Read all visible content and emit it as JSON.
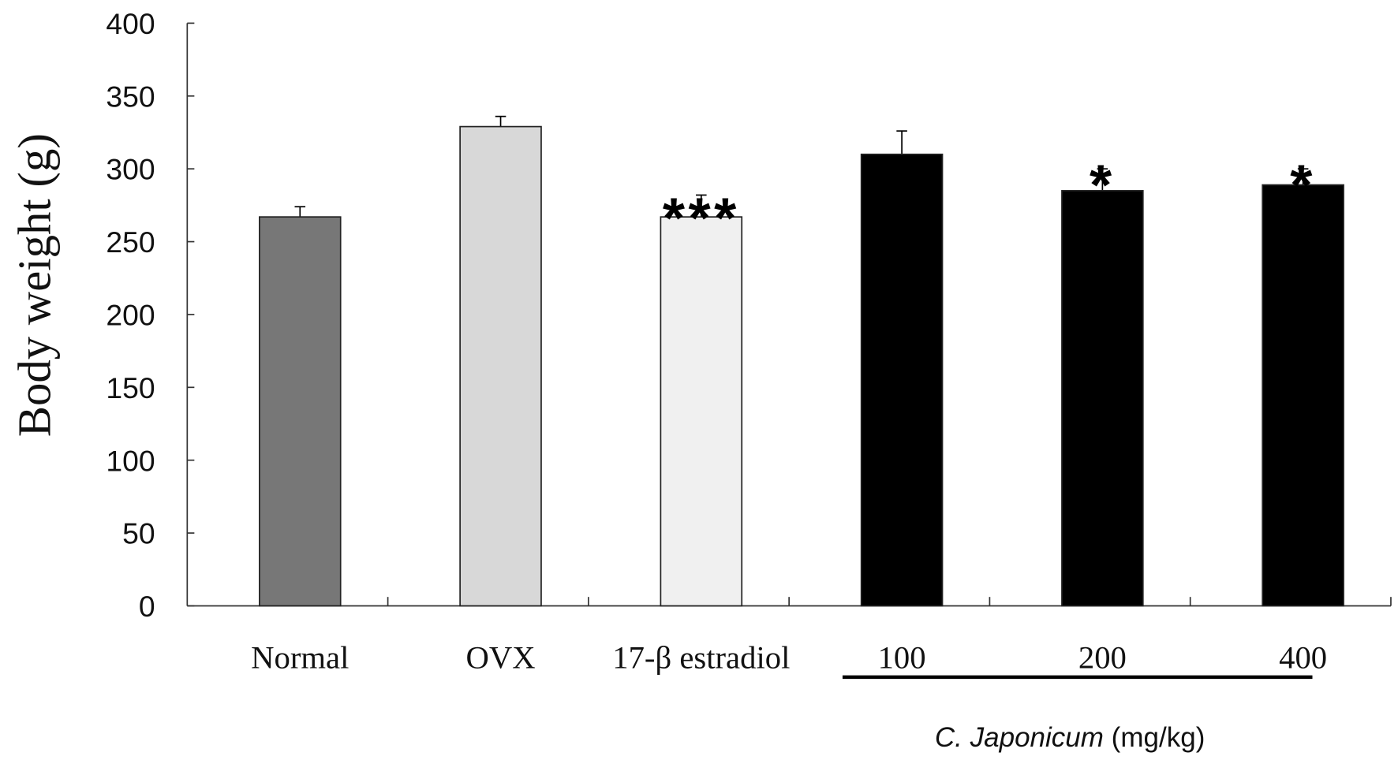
{
  "chart_data": {
    "type": "bar",
    "categories": [
      "Normal",
      "OVX",
      "17-β estradiol",
      "100",
      "200",
      "400"
    ],
    "values": [
      267,
      329,
      267,
      310,
      285,
      289
    ],
    "errors": [
      7,
      7,
      15,
      16,
      15,
      11
    ],
    "colors": [
      "#777777",
      "#d8d8d8",
      "#f0f0f0",
      "#000000",
      "#000000",
      "#000000"
    ],
    "significance": [
      "",
      "",
      "***",
      "",
      "*",
      "*"
    ],
    "ylabel": "Body weight (g)",
    "xlabel_group": {
      "italic": "C. Japonicum",
      "rest": " (mg/kg)",
      "spans": [
        "100",
        "200",
        "400"
      ]
    },
    "ylim": [
      0,
      400
    ],
    "yticks": [
      0,
      50,
      100,
      150,
      200,
      250,
      300,
      350,
      400
    ],
    "grid": false,
    "legend": "none"
  }
}
